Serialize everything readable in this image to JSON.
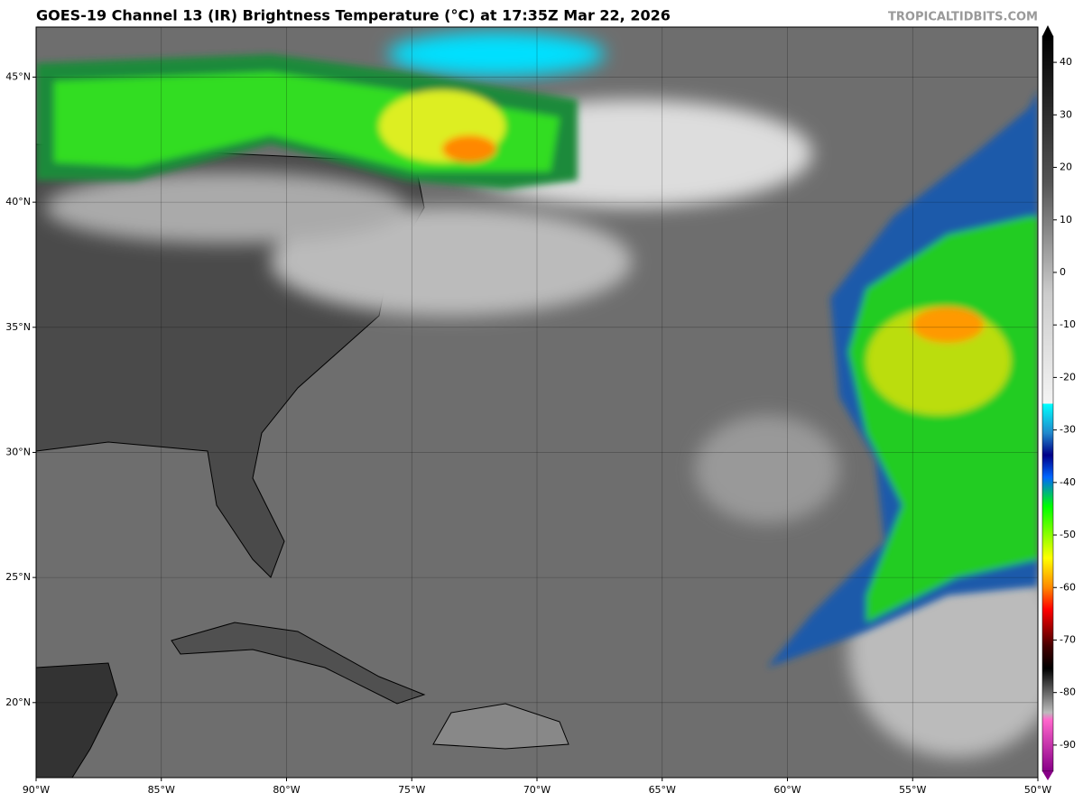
{
  "header": {
    "title": "GOES-19 Channel 13 (IR) Brightness Temperature (°C) at 17:35Z Mar 22, 2026",
    "watermark": "TROPICALTIDBITS.COM"
  },
  "map": {
    "xlim": [
      -90,
      -50
    ],
    "ylim": [
      17,
      47
    ],
    "xticks": [
      {
        "value": -90,
        "label": "90°W"
      },
      {
        "value": -85,
        "label": "85°W"
      },
      {
        "value": -80,
        "label": "80°W"
      },
      {
        "value": -75,
        "label": "75°W"
      },
      {
        "value": -70,
        "label": "70°W"
      },
      {
        "value": -65,
        "label": "65°W"
      },
      {
        "value": -60,
        "label": "60°W"
      },
      {
        "value": -55,
        "label": "55°W"
      },
      {
        "value": -50,
        "label": "50°W"
      }
    ],
    "yticks": [
      {
        "value": 20,
        "label": "20°N"
      },
      {
        "value": 25,
        "label": "25°N"
      },
      {
        "value": 30,
        "label": "30°N"
      },
      {
        "value": 35,
        "label": "35°N"
      },
      {
        "value": 40,
        "label": "40°N"
      },
      {
        "value": 45,
        "label": "45°N"
      }
    ],
    "grid": true
  },
  "colorbar": {
    "lim": [
      -95,
      45
    ],
    "ticks": [
      40,
      30,
      20,
      10,
      0,
      -10,
      -20,
      -30,
      -40,
      -50,
      -60,
      -70,
      -80,
      -90
    ]
  }
}
